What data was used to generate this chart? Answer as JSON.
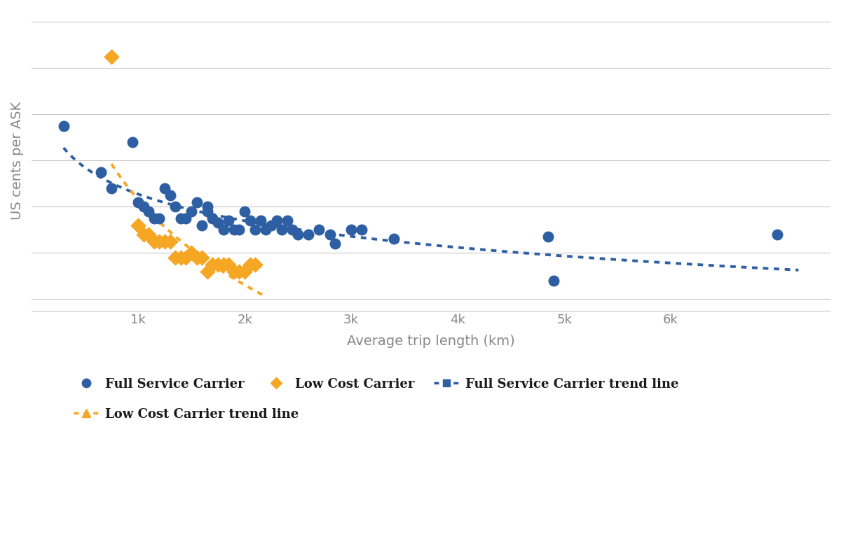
{
  "fsc_x": [
    300,
    650,
    750,
    950,
    1000,
    1050,
    1100,
    1150,
    1200,
    1250,
    1300,
    1350,
    1400,
    1450,
    1500,
    1550,
    1600,
    1650,
    1650,
    1700,
    1750,
    1800,
    1850,
    1900,
    1950,
    2000,
    2050,
    2100,
    2150,
    2200,
    2250,
    2300,
    2350,
    2400,
    2450,
    2500,
    2600,
    2700,
    2800,
    2850,
    3000,
    3100,
    3400,
    4850,
    4900,
    7000
  ],
  "fsc_y": [
    10.5,
    8.5,
    7.8,
    9.8,
    7.2,
    7.0,
    6.8,
    6.5,
    6.5,
    7.8,
    7.5,
    7.0,
    6.5,
    6.5,
    6.8,
    7.2,
    6.2,
    6.8,
    7.0,
    6.5,
    6.3,
    6.0,
    6.4,
    6.0,
    6.0,
    6.8,
    6.4,
    6.0,
    6.4,
    6.0,
    6.2,
    6.4,
    6.0,
    6.4,
    6.0,
    5.8,
    5.8,
    6.0,
    5.8,
    5.4,
    6.0,
    6.0,
    5.6,
    5.7,
    3.8,
    5.8
  ],
  "lcc_x": [
    750,
    1000,
    1050,
    1100,
    1150,
    1200,
    1250,
    1300,
    1350,
    1400,
    1450,
    1500,
    1550,
    1600,
    1650,
    1700,
    1750,
    1800,
    1850,
    1900,
    1950,
    2000,
    2050,
    2100
  ],
  "lcc_y": [
    13.5,
    6.2,
    5.8,
    5.8,
    5.5,
    5.5,
    5.5,
    5.5,
    4.8,
    4.8,
    4.8,
    5.0,
    4.8,
    4.8,
    4.2,
    4.5,
    4.5,
    4.5,
    4.5,
    4.2,
    4.2,
    4.2,
    4.5,
    4.5
  ],
  "fsc_color": "#2E5FA3",
  "lcc_color": "#F5A623",
  "trend_fsc_color": "#2E5FA3",
  "trend_lcc_color": "#F5A623",
  "xlabel": "Average trip length (km)",
  "ylabel": "US cents per ASK",
  "xlim": [
    0,
    7500
  ],
  "ylim": [
    2.5,
    15.5
  ],
  "xtick_vals": [
    1000,
    2000,
    3000,
    4000,
    5000,
    6000
  ],
  "xtick_labels": [
    "1k",
    "2k",
    "3k",
    "4k",
    "5k",
    "6k"
  ],
  "background_color": "#ffffff",
  "grid_color": "#c8c8c8",
  "grid_y_vals": [
    3.0,
    5.0,
    7.0,
    9.0,
    11.0,
    13.0,
    15.0
  ]
}
